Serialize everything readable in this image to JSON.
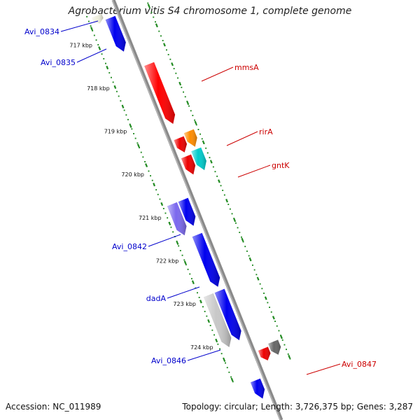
{
  "title": "Agrobacterium vitis S4 chromosome 1, complete genome",
  "accession": "Accession: NC_011989",
  "topology": "Topology: circular; Length: 3,726,375 bp; Genes: 3,287",
  "colors": {
    "backbone": "#8a8a8a",
    "tick_dots": "#228b22",
    "label_left": "#0000cc",
    "label_right": "#cc0000"
  },
  "ticks": [
    {
      "label": "717 kbp",
      "kbp": 717
    },
    {
      "label": "718 kbp",
      "kbp": 718
    },
    {
      "label": "719 kbp",
      "kbp": 719
    },
    {
      "label": "720 kbp",
      "kbp": 720
    },
    {
      "label": "721 kbp",
      "kbp": 721
    },
    {
      "label": "722 kbp",
      "kbp": 722
    },
    {
      "label": "723 kbp",
      "kbp": 723
    },
    {
      "label": "724 kbp",
      "kbp": 724
    }
  ],
  "features": [
    {
      "id": "f0834",
      "color": "#eeeedd",
      "strand": "fwd",
      "s": 0.3,
      "e": 0.6,
      "lane": 2
    },
    {
      "id": "f0835",
      "color": "#0000ee",
      "strand": "fwd",
      "s": 0.55,
      "e": 1.85,
      "lane": 1
    },
    {
      "id": "fmmsA",
      "color": "#ff0000",
      "strand": "rev",
      "s": 2.6,
      "e": 4.9,
      "lane": -1
    },
    {
      "id": "fr1",
      "color": "#ee0000",
      "strand": "rev",
      "s": 5.45,
      "e": 6.0,
      "lane": -1
    },
    {
      "id": "frirA",
      "color": "#ff8c00",
      "strand": "rev",
      "s": 5.35,
      "e": 5.95,
      "lane": -2
    },
    {
      "id": "fr2",
      "color": "#ee0000",
      "strand": "rev",
      "s": 6.15,
      "e": 6.85,
      "lane": -1
    },
    {
      "id": "fgntK",
      "color": "#00cccc",
      "strand": "rev",
      "s": 6.05,
      "e": 6.85,
      "lane": -2
    },
    {
      "id": "f0842",
      "color": "#7b68ee",
      "strand": "fwd",
      "s": 7.55,
      "e": 8.75,
      "lane": 2
    },
    {
      "id": "fblue1",
      "color": "#0000ee",
      "strand": "fwd",
      "s": 7.55,
      "e": 8.55,
      "lane": 1
    },
    {
      "id": "fdadA",
      "color": "#0000ee",
      "strand": "fwd",
      "s": 8.9,
      "e": 10.9,
      "lane": 1
    },
    {
      "id": "f0846",
      "color": "#c8c8c8",
      "strand": "fwd",
      "s": 11.05,
      "e": 13.05,
      "lane": 2
    },
    {
      "id": "fblue2",
      "color": "#0000ee",
      "strand": "fwd",
      "s": 11.05,
      "e": 12.95,
      "lane": 1
    },
    {
      "id": "f0847",
      "color": "#ee0000",
      "strand": "rev",
      "s": 13.55,
      "e": 14.0,
      "lane": -1
    },
    {
      "id": "fgray",
      "color": "#666666",
      "strand": "rev",
      "s": 13.45,
      "e": 13.95,
      "lane": -2
    },
    {
      "id": "fbottom",
      "color": "#0000ee",
      "strand": "fwd",
      "s": 14.5,
      "e": 15.2,
      "lane": 1
    }
  ],
  "labels": [
    {
      "text": "Avi_0834",
      "side": "left",
      "target": "f0834"
    },
    {
      "text": "Avi_0835",
      "side": "left",
      "target": "f0835"
    },
    {
      "text": "mmsA",
      "side": "right",
      "target": "fmmsA"
    },
    {
      "text": "rirA",
      "side": "right",
      "target": "frirA"
    },
    {
      "text": "gntK",
      "side": "right",
      "target": "fgntK"
    },
    {
      "text": "Avi_0842",
      "side": "left",
      "target": "f0842"
    },
    {
      "text": "dadA",
      "side": "left",
      "target": "fdadA"
    },
    {
      "text": "Avi_0846",
      "side": "left",
      "target": "f0846"
    },
    {
      "text": "Avi_0847",
      "side": "right",
      "target": "f0847"
    }
  ]
}
